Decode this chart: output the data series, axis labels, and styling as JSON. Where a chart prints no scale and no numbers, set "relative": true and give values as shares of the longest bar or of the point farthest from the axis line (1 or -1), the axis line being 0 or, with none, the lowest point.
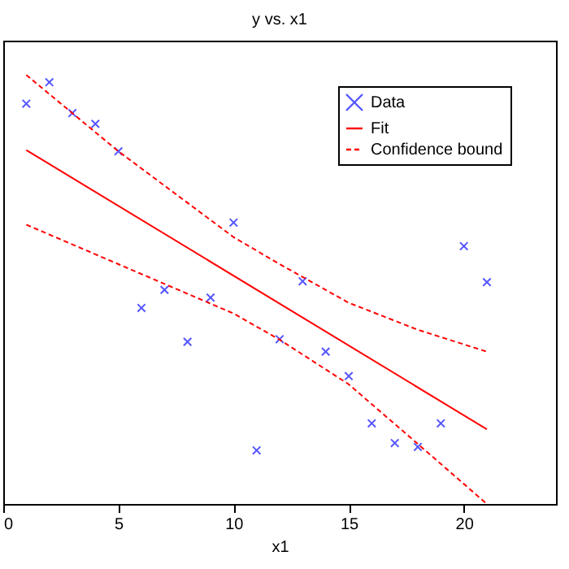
{
  "chart_data": {
    "type": "scatter",
    "title": "y vs. x1",
    "xlabel": "x1",
    "relative": true,
    "xlim": [
      0,
      24
    ],
    "xticks": [
      0,
      5,
      10,
      15,
      20
    ],
    "tick_labels": "x",
    "grid": false,
    "legend": "top right",
    "series": [
      {
        "name": "Data",
        "marker": "cross",
        "color": "#5555ff",
        "x": [
          1,
          2,
          3,
          4,
          5,
          6,
          7,
          8,
          9,
          10,
          11,
          12,
          13,
          14,
          15,
          16,
          17,
          18,
          19,
          20,
          21
        ],
        "values": [
          0.933,
          0.983,
          0.911,
          0.886,
          0.822,
          0.457,
          0.499,
          0.378,
          0.481,
          0.656,
          0.125,
          0.384,
          0.519,
          0.355,
          0.298,
          0.188,
          0.142,
          0.133,
          0.188,
          0.601,
          0.517
        ]
      },
      {
        "name": "Fit",
        "type": "line",
        "line_style": "solid",
        "color": "#ff0000",
        "x": [
          1,
          21
        ],
        "values": [
          0.825,
          0.174
        ]
      },
      {
        "name": "Confidence bound",
        "type": "line",
        "line_style": "dashed",
        "color": "#ff0000",
        "x": [
          1,
          5,
          10,
          12,
          15,
          18,
          21
        ],
        "values": [
          1.0,
          0.822,
          0.622,
          0.559,
          0.469,
          0.406,
          0.355
        ]
      },
      {
        "type": "line",
        "line_style": "dashed",
        "color": "#ff0000",
        "x": [
          1,
          5,
          10,
          12,
          15,
          18,
          21
        ],
        "values": [
          0.651,
          0.559,
          0.444,
          0.383,
          0.279,
          0.14,
          0
        ]
      }
    ]
  }
}
